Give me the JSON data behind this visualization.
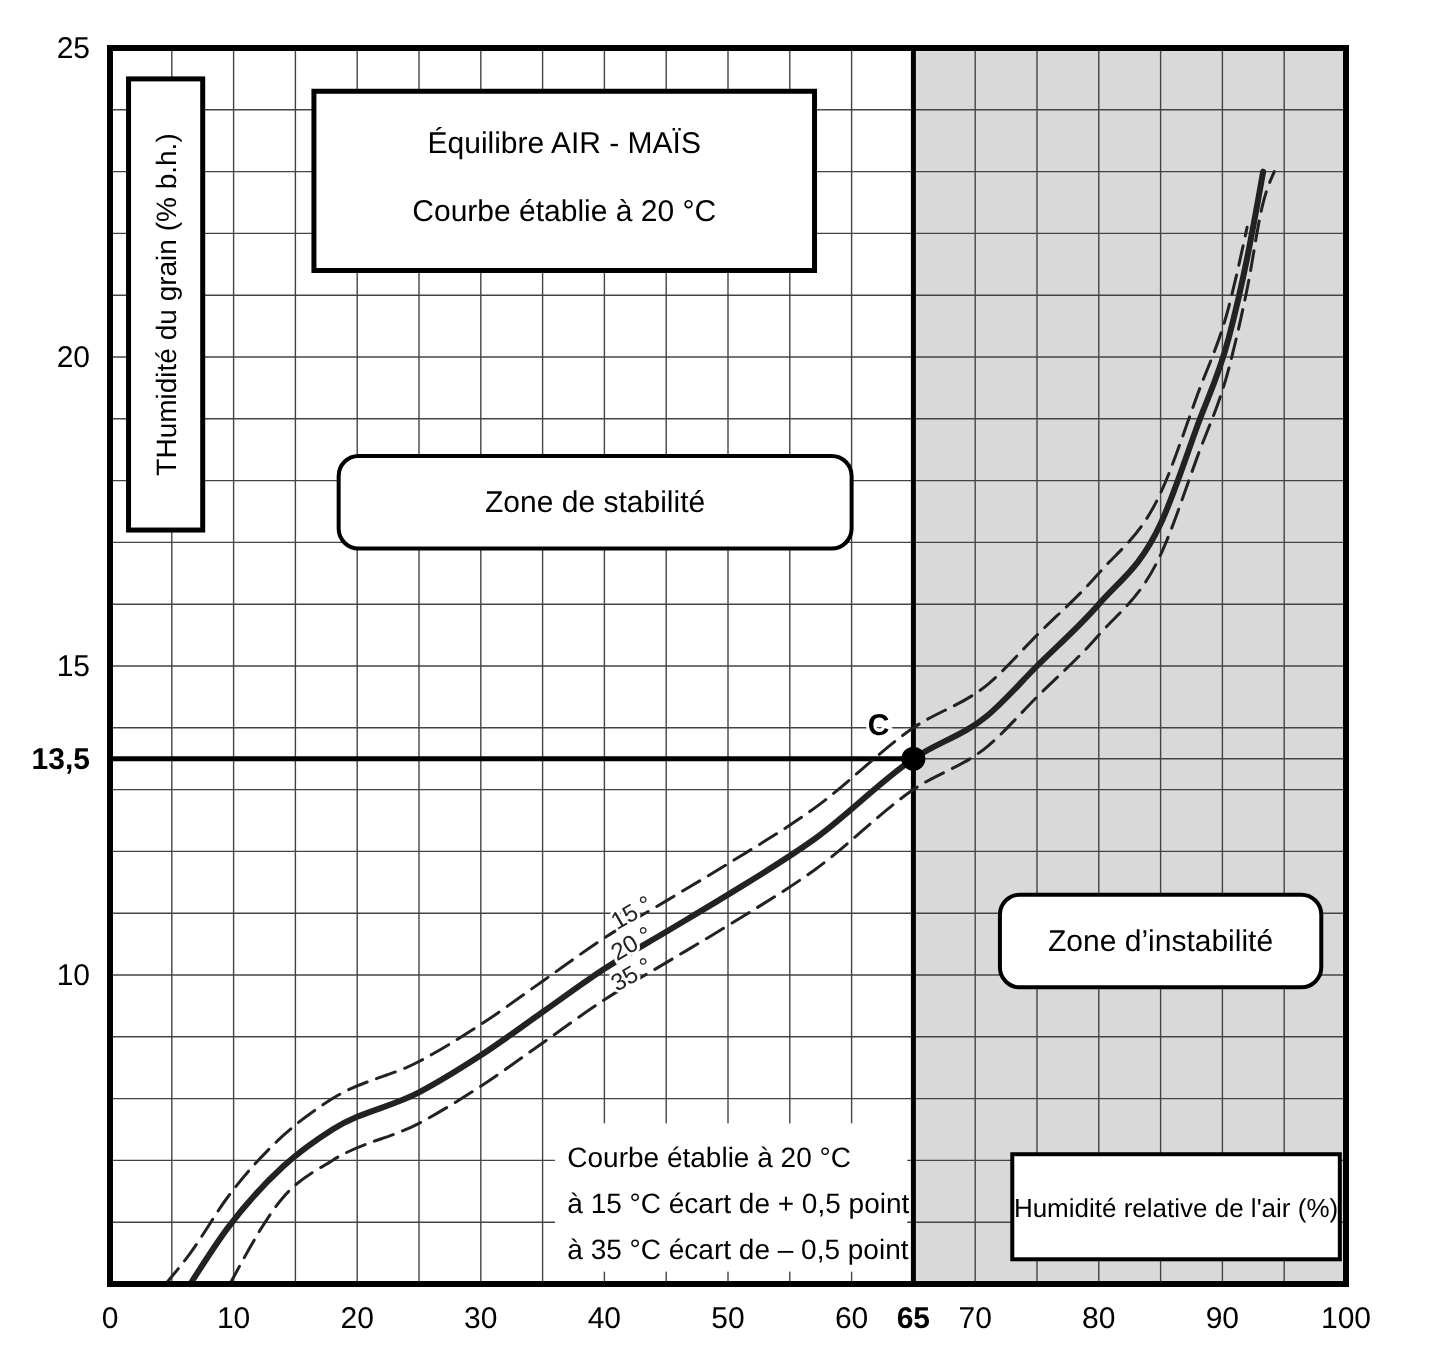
{
  "chart_data": {
    "type": "line",
    "title": "Équilibre AIR - MAÏS",
    "subtitle": "Courbe établie à 20 °C",
    "xlabel": "Humidité relative de l'air (%)",
    "ylabel": "THumidité du grain (% b.h.)",
    "xlim": [
      0,
      100
    ],
    "ylim": [
      5,
      25
    ],
    "xticks": [
      0,
      {
        "value": 5,
        "label": null
      },
      10,
      {
        "value": 15,
        "label": null
      },
      20,
      {
        "value": 25,
        "label": null
      },
      30,
      {
        "value": 35,
        "label": null
      },
      40,
      {
        "value": 45,
        "label": null
      },
      50,
      {
        "value": 55,
        "label": null
      },
      60,
      65,
      70,
      {
        "value": 75,
        "label": null
      },
      80,
      {
        "value": 85,
        "label": null
      },
      90,
      {
        "value": 95,
        "label": null
      },
      100
    ],
    "yticks": [
      {
        "value": 5,
        "label": null
      },
      {
        "value": 6,
        "label": null
      },
      {
        "value": 7,
        "label": null
      },
      {
        "value": 8,
        "label": null
      },
      {
        "value": 9,
        "label": null
      },
      10,
      {
        "value": 11,
        "label": null
      },
      {
        "value": 12,
        "label": null
      },
      {
        "value": 13,
        "label": null
      },
      {
        "value": 13.5,
        "label": "13,5"
      },
      {
        "value": 14,
        "label": null
      },
      15,
      {
        "value": 16,
        "label": null
      },
      {
        "value": 17,
        "label": null
      },
      {
        "value": 18,
        "label": null
      },
      {
        "value": 19,
        "label": null
      },
      20,
      {
        "value": 21,
        "label": null
      },
      {
        "value": 22,
        "label": null
      },
      {
        "value": 23,
        "label": null
      },
      {
        "value": 24,
        "label": null
      },
      25
    ],
    "grid": true,
    "series": [
      {
        "name": "15 °",
        "color": "#222222",
        "line_style": "dashed",
        "x": [
          4.5,
          6.5,
          9.5,
          14,
          18,
          25,
          30,
          35,
          40,
          45,
          50,
          57,
          65,
          71,
          75,
          80,
          85,
          88,
          90.5,
          92
        ],
        "values": [
          5,
          5.5,
          6.4,
          7.4,
          8,
          8.6,
          9.2,
          9.9,
          10.6,
          11.2,
          11.8,
          12.7,
          14,
          14.7,
          15.5,
          16.5,
          17.8,
          19.4,
          20.8,
          22.1
        ]
      },
      {
        "name": "20 °",
        "color": "#222222",
        "line_style": "solid",
        "x": [
          6.5,
          9.5,
          14,
          18,
          25,
          30,
          35,
          40,
          45,
          50,
          57,
          65,
          71,
          75,
          80,
          85,
          88,
          90.5,
          92,
          93.3
        ],
        "values": [
          5,
          5.9,
          6.9,
          7.5,
          8.1,
          8.7,
          9.4,
          10.1,
          10.7,
          11.3,
          12.2,
          13.5,
          14.2,
          15,
          16,
          17.3,
          18.9,
          20.3,
          21.6,
          23
        ]
      },
      {
        "name": "35 °",
        "color": "#222222",
        "line_style": "dashed",
        "x": [
          9.7,
          14,
          18,
          25,
          30,
          35,
          40,
          45,
          50,
          57,
          65,
          71,
          75,
          80,
          85,
          88,
          90.5,
          92,
          93.3,
          94.2
        ],
        "values": [
          5,
          6.4,
          7,
          7.6,
          8.2,
          8.9,
          9.6,
          10.2,
          10.8,
          11.7,
          13,
          13.7,
          14.5,
          15.5,
          16.8,
          18.4,
          19.8,
          21.1,
          22.5,
          23
        ]
      },
      {
        "type": "scatter",
        "color": "#000000",
        "x": [
          65
        ],
        "values": [
          13.5
        ]
      }
    ],
    "ref_lines": [
      {
        "axis": "x",
        "value": 65,
        "color": "#000000"
      },
      {
        "axis": "y",
        "value": 13.5,
        "color": "#000000"
      }
    ],
    "bands": [
      {
        "axis": "x",
        "from": 65,
        "to": 100,
        "label": "Zone d’instabilité",
        "color": "#d9d9d9"
      }
    ],
    "annotations": [
      {
        "text": "C",
        "x": 65,
        "y": 13.5
      },
      "Zone de stabilité",
      "Courbe établie  à 20 °C\nà 15 °C écart de + 0,5 point\nà 35 °C écart de – 0,5 point"
    ]
  }
}
